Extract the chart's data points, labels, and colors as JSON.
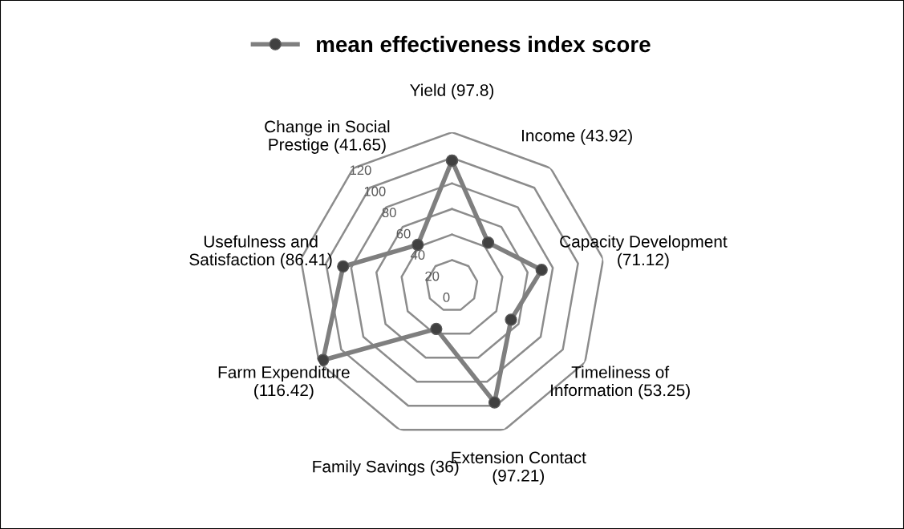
{
  "chart_data": {
    "type": "radar",
    "categories": [
      "Yield (97.8)",
      "Income (43.92)",
      "Capacity Development\n(71.12)",
      "Timeliness of\nInformation (53.25)",
      "Extension Contact\n(97.21)",
      "Family Savings (36)",
      "Farm Expenditure\n(116.42)",
      "Usefulness and\nSatisfaction (86.41)",
      "Change in Social\nPrestige (41.65)"
    ],
    "series": [
      {
        "name": "mean effectiveness index score",
        "color": "#7f7f7f",
        "values": [
          97.8,
          43.92,
          71.12,
          53.25,
          97.21,
          36,
          116.42,
          86.41,
          41.65
        ]
      }
    ],
    "ylim": [
      0,
      120
    ],
    "yticks": [
      0,
      20,
      40,
      60,
      80,
      100,
      120
    ],
    "legend": "top",
    "marker": "circle",
    "line_style": "solid"
  }
}
